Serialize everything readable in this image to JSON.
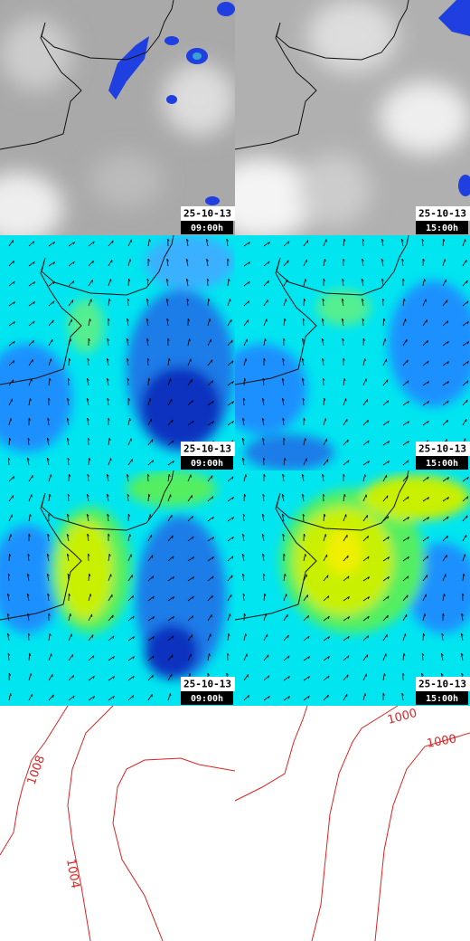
{
  "panels": [
    {
      "date": "25-10-13",
      "time": "09:00h"
    },
    {
      "date": "25-10-13",
      "time": "15:00h"
    },
    {
      "date": "25-10-13",
      "time": "09:00h"
    },
    {
      "date": "25-10-13",
      "time": "15:00h"
    },
    {
      "date": "25-10-13",
      "time": "09:00h"
    },
    {
      "date": "25-10-13",
      "time": "15:00h"
    }
  ],
  "isobar_labels": [
    "1008",
    "1004",
    "1000",
    "1000"
  ]
}
